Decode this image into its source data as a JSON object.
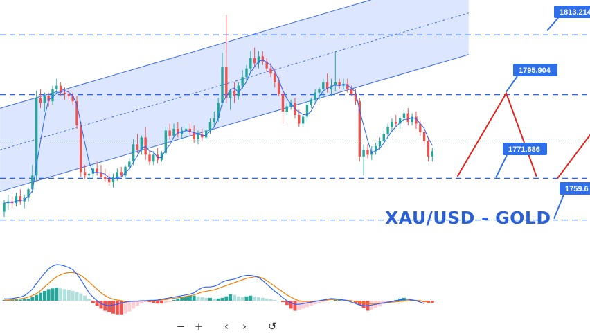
{
  "title": "XAU/USD - GOLD",
  "colors": {
    "bull": "#26a69a",
    "bear": "#ef5350",
    "channel_fill": "#d6e2ff",
    "channel_line": "#3d6be8",
    "level_line": "#2962ff",
    "label_bg": "#2f6fe8",
    "forecast": "#e8201a",
    "fast_line": "#2962ff",
    "slow_line": "#f57c00",
    "title": "#2a5fd6"
  },
  "levels": [
    {
      "value": 1813.214,
      "label": "1813.214"
    },
    {
      "value": 1795.904,
      "label": "1795.904"
    },
    {
      "value": 1771.686,
      "label": "1771.686"
    },
    {
      "value": 1759.6,
      "label": "1759.6"
    }
  ],
  "toolbar": {
    "buttons": [
      {
        "name": "zoom-out-button",
        "icon": "minus-icon",
        "glyph": "−"
      },
      {
        "name": "zoom-in-button",
        "icon": "plus-icon",
        "glyph": "+"
      },
      {
        "name": "scroll-left-button",
        "icon": "chevron-left-icon",
        "glyph": "‹"
      },
      {
        "name": "scroll-right-button",
        "icon": "chevron-right-icon",
        "glyph": "›"
      },
      {
        "name": "reset-button",
        "icon": "reset-icon",
        "glyph": "↺"
      }
    ]
  },
  "chart_data": {
    "type": "candlestick",
    "title": "XAU/USD - GOLD",
    "ylim": [
      1752.7,
      1823.3
    ],
    "grid": false,
    "channel": {
      "start": [
        0,
        1768.2
      ],
      "end": [
        115,
        1807.5
      ],
      "width": 24.1
    },
    "candles": [
      [
        1762.0,
        1765.5,
        1760.5,
        1764.5
      ],
      [
        1764.5,
        1767.0,
        1762.5,
        1765.0
      ],
      [
        1765.0,
        1766.5,
        1763.0,
        1764.5
      ],
      [
        1764.5,
        1767.5,
        1763.5,
        1766.5
      ],
      [
        1766.5,
        1768.5,
        1764.0,
        1765.0
      ],
      [
        1765.0,
        1767.0,
        1763.0,
        1766.0
      ],
      [
        1766.0,
        1769.0,
        1765.0,
        1768.5
      ],
      [
        1768.5,
        1775.5,
        1767.5,
        1772.5
      ],
      [
        1772.5,
        1797.0,
        1771.0,
        1795.0
      ],
      [
        1795.0,
        1797.5,
        1792.0,
        1793.5
      ],
      [
        1793.5,
        1796.5,
        1791.0,
        1795.5
      ],
      [
        1795.5,
        1796.5,
        1792.5,
        1794.0
      ],
      [
        1794.0,
        1798.5,
        1793.0,
        1797.5
      ],
      [
        1797.5,
        1800.5,
        1796.0,
        1798.5
      ],
      [
        1798.5,
        1799.5,
        1795.5,
        1796.5
      ],
      [
        1796.5,
        1798.0,
        1794.5,
        1796.0
      ],
      [
        1796.0,
        1797.5,
        1794.5,
        1795.5
      ],
      [
        1795.5,
        1796.5,
        1793.0,
        1794.0
      ],
      [
        1794.0,
        1795.5,
        1786.0,
        1787.0
      ],
      [
        1787.0,
        1788.0,
        1772.0,
        1773.5
      ],
      [
        1773.5,
        1775.5,
        1771.5,
        1772.5
      ],
      [
        1772.5,
        1774.5,
        1770.5,
        1773.0
      ],
      [
        1773.0,
        1776.0,
        1771.5,
        1774.5
      ],
      [
        1774.5,
        1776.5,
        1772.5,
        1773.5
      ],
      [
        1773.5,
        1775.5,
        1771.5,
        1772.0
      ],
      [
        1772.0,
        1774.5,
        1770.5,
        1771.5
      ],
      [
        1771.5,
        1773.0,
        1769.5,
        1770.5
      ],
      [
        1770.5,
        1773.0,
        1769.0,
        1772.0
      ],
      [
        1772.0,
        1774.5,
        1771.0,
        1773.5
      ],
      [
        1773.5,
        1775.0,
        1772.0,
        1772.5
      ],
      [
        1772.5,
        1775.5,
        1771.5,
        1775.0
      ],
      [
        1775.0,
        1777.5,
        1774.0,
        1776.5
      ],
      [
        1776.5,
        1783.0,
        1775.5,
        1781.5
      ],
      [
        1781.5,
        1784.5,
        1779.0,
        1780.0
      ],
      [
        1780.0,
        1784.0,
        1778.5,
        1783.5
      ],
      [
        1783.5,
        1786.5,
        1777.0,
        1778.5
      ],
      [
        1778.5,
        1780.0,
        1775.5,
        1776.5
      ],
      [
        1776.5,
        1779.5,
        1775.5,
        1778.5
      ],
      [
        1778.5,
        1780.5,
        1776.0,
        1777.0
      ],
      [
        1777.0,
        1779.5,
        1776.5,
        1779.0
      ],
      [
        1779.0,
        1786.5,
        1778.5,
        1785.5
      ],
      [
        1785.5,
        1787.5,
        1783.0,
        1784.0
      ],
      [
        1784.0,
        1787.5,
        1783.5,
        1786.0
      ],
      [
        1786.0,
        1788.0,
        1783.5,
        1784.5
      ],
      [
        1784.5,
        1786.5,
        1783.0,
        1785.5
      ],
      [
        1785.5,
        1787.0,
        1784.0,
        1786.0
      ],
      [
        1786.0,
        1787.5,
        1784.0,
        1785.0
      ],
      [
        1785.0,
        1787.0,
        1782.0,
        1783.0
      ],
      [
        1783.0,
        1785.5,
        1781.5,
        1784.5
      ],
      [
        1784.5,
        1786.0,
        1782.5,
        1783.5
      ],
      [
        1783.5,
        1786.0,
        1783.0,
        1785.5
      ],
      [
        1785.5,
        1789.0,
        1784.5,
        1788.0
      ],
      [
        1788.0,
        1791.0,
        1786.5,
        1789.0
      ],
      [
        1789.0,
        1795.0,
        1788.0,
        1793.5
      ],
      [
        1793.5,
        1808.0,
        1792.5,
        1804.0
      ],
      [
        1804.0,
        1819.0,
        1793.5,
        1795.0
      ],
      [
        1795.0,
        1797.5,
        1791.5,
        1797.0
      ],
      [
        1797.0,
        1799.5,
        1793.5,
        1795.5
      ],
      [
        1795.5,
        1799.5,
        1794.5,
        1798.5
      ],
      [
        1798.5,
        1803.0,
        1797.5,
        1801.0
      ],
      [
        1801.0,
        1804.5,
        1799.5,
        1803.5
      ],
      [
        1803.5,
        1808.5,
        1802.0,
        1806.5
      ],
      [
        1806.5,
        1809.5,
        1804.0,
        1805.0
      ],
      [
        1805.0,
        1808.5,
        1803.5,
        1807.0
      ],
      [
        1807.0,
        1808.5,
        1804.5,
        1805.5
      ],
      [
        1805.5,
        1806.5,
        1802.5,
        1803.5
      ],
      [
        1803.5,
        1805.0,
        1801.0,
        1802.0
      ],
      [
        1802.0,
        1803.5,
        1798.0,
        1799.5
      ],
      [
        1799.5,
        1801.0,
        1795.5,
        1796.0
      ],
      [
        1796.0,
        1798.0,
        1787.5,
        1791.0
      ],
      [
        1791.0,
        1793.5,
        1790.0,
        1792.5
      ],
      [
        1792.5,
        1794.5,
        1791.5,
        1793.5
      ],
      [
        1793.5,
        1795.0,
        1789.0,
        1790.0
      ],
      [
        1790.0,
        1791.5,
        1786.5,
        1787.5
      ],
      [
        1787.5,
        1790.0,
        1786.5,
        1789.5
      ],
      [
        1789.5,
        1794.0,
        1788.0,
        1793.0
      ],
      [
        1793.0,
        1795.0,
        1792.0,
        1794.5
      ],
      [
        1794.5,
        1797.5,
        1793.5,
        1796.5
      ],
      [
        1796.5,
        1798.0,
        1794.5,
        1797.5
      ],
      [
        1797.5,
        1800.5,
        1795.0,
        1799.5
      ],
      [
        1799.5,
        1802.0,
        1796.5,
        1797.5
      ],
      [
        1797.5,
        1800.5,
        1795.5,
        1798.5
      ],
      [
        1798.5,
        1808.5,
        1797.0,
        1799.5
      ],
      [
        1799.5,
        1800.5,
        1797.5,
        1798.5
      ],
      [
        1798.5,
        1800.5,
        1797.5,
        1799.0
      ],
      [
        1799.0,
        1800.5,
        1796.5,
        1797.5
      ],
      [
        1797.5,
        1798.5,
        1795.5,
        1796.0
      ],
      [
        1796.0,
        1797.5,
        1793.0,
        1794.0
      ],
      [
        1794.0,
        1795.0,
        1776.5,
        1778.0
      ],
      [
        1778.0,
        1781.5,
        1772.5,
        1780.0
      ],
      [
        1780.0,
        1781.5,
        1777.5,
        1778.5
      ],
      [
        1778.5,
        1781.0,
        1777.0,
        1779.5
      ],
      [
        1779.5,
        1782.0,
        1778.5,
        1781.0
      ],
      [
        1781.0,
        1783.5,
        1780.0,
        1782.5
      ],
      [
        1782.5,
        1785.5,
        1781.5,
        1784.5
      ],
      [
        1784.5,
        1787.5,
        1783.5,
        1786.5
      ],
      [
        1786.5,
        1789.0,
        1785.0,
        1788.0
      ],
      [
        1788.0,
        1790.0,
        1786.5,
        1787.5
      ],
      [
        1787.5,
        1789.5,
        1786.0,
        1789.0
      ],
      [
        1789.0,
        1791.5,
        1788.0,
        1790.5
      ],
      [
        1790.5,
        1792.0,
        1787.0,
        1788.0
      ],
      [
        1788.0,
        1790.5,
        1787.0,
        1789.5
      ],
      [
        1789.5,
        1791.0,
        1786.0,
        1787.5
      ],
      [
        1787.5,
        1788.5,
        1784.0,
        1785.0
      ],
      [
        1785.0,
        1786.5,
        1781.5,
        1782.5
      ],
      [
        1782.5,
        1783.5,
        1776.5,
        1778.0
      ],
      [
        1778.0,
        1780.5,
        1776.5,
        1779.5
      ]
    ],
    "forecast_paths": [
      [
        [
          112.2,
          1772.2
        ],
        [
          124.3,
          1796.3
        ],
        [
          131.8,
          1772.2
        ]
      ],
      [
        [
          137.0,
          1771.7
        ],
        [
          152.2,
          1795.3
        ],
        [
          163.5,
          1780.5
        ]
      ]
    ],
    "indicator": {
      "type": "macd",
      "histogram": [
        0.02,
        0.02,
        0.02,
        0.03,
        0.03,
        0.04,
        0.06,
        0.1,
        0.16,
        0.22,
        0.27,
        0.32,
        0.34,
        0.36,
        0.34,
        0.32,
        0.3,
        0.27,
        0.24,
        0.2,
        0.14,
        0.05,
        -0.06,
        -0.14,
        -0.22,
        -0.28,
        -0.32,
        -0.36,
        -0.38,
        -0.38,
        -0.36,
        -0.3,
        -0.22,
        -0.14,
        -0.08,
        -0.04,
        -0.04,
        -0.06,
        -0.08,
        -0.08,
        -0.06,
        -0.04,
        0.02,
        0.06,
        0.1,
        0.12,
        0.14,
        0.14,
        0.12,
        0.1,
        0.08,
        0.08,
        0.06,
        0.06,
        0.08,
        0.12,
        0.18,
        0.16,
        0.12,
        0.1,
        0.12,
        0.14,
        0.12,
        0.1,
        0.08,
        0.06,
        0.04,
        0.02,
        0.0,
        -0.04,
        -0.12,
        -0.22,
        -0.28,
        -0.26,
        -0.22,
        -0.18,
        -0.14,
        -0.1,
        -0.06,
        -0.04,
        -0.02,
        0.0,
        0.02,
        0.04,
        0.03,
        0.02,
        0.0,
        -0.06,
        -0.12,
        -0.2,
        -0.28,
        -0.26,
        -0.2,
        -0.16,
        -0.1,
        -0.06,
        -0.02,
        0.02,
        0.06,
        0.08,
        0.06,
        0.04,
        0.02,
        -0.02,
        -0.04,
        -0.06,
        -0.06
      ],
      "fast": [
        0.05,
        0.05,
        0.06,
        0.08,
        0.1,
        0.14,
        0.22,
        0.32,
        0.48,
        0.62,
        0.76,
        0.88,
        0.96,
        1.0,
        0.99,
        0.96,
        0.92,
        0.86,
        0.74,
        0.58,
        0.4,
        0.22,
        0.1,
        0.0,
        -0.08,
        -0.12,
        -0.14,
        -0.12,
        -0.1,
        -0.06,
        -0.04,
        -0.02,
        -0.01,
        -0.01,
        0.0,
        0.0,
        0.01,
        0.01,
        0.02,
        0.04,
        0.06,
        0.08,
        0.1,
        0.12,
        0.14,
        0.16,
        0.18,
        0.22,
        0.3,
        0.36,
        0.38,
        0.38,
        0.4,
        0.44,
        0.52,
        0.56,
        0.58,
        0.6,
        0.64,
        0.68,
        0.7,
        0.7,
        0.68,
        0.64,
        0.56,
        0.46,
        0.36,
        0.26,
        0.18,
        0.08,
        0.0,
        -0.06,
        -0.1,
        -0.1,
        -0.08,
        -0.06,
        -0.04,
        -0.02,
        0.0,
        0.02,
        0.04,
        0.06,
        0.05,
        0.04,
        0.02,
        0.0,
        -0.04,
        -0.08,
        -0.12,
        -0.14,
        -0.14,
        -0.12,
        -0.1,
        -0.08,
        -0.06,
        -0.04,
        -0.02,
        0.0,
        0.02,
        0.04,
        0.04,
        0.02,
        0.0,
        -0.04,
        -0.08
      ],
      "slow": [
        0.02,
        0.02,
        0.03,
        0.04,
        0.05,
        0.07,
        0.1,
        0.14,
        0.2,
        0.28,
        0.38,
        0.48,
        0.58,
        0.66,
        0.72,
        0.76,
        0.78,
        0.78,
        0.76,
        0.7,
        0.62,
        0.52,
        0.42,
        0.32,
        0.22,
        0.14,
        0.08,
        0.04,
        0.02,
        0.0,
        -0.02,
        -0.02,
        -0.02,
        -0.02,
        -0.01,
        -0.01,
        0.0,
        0.0,
        0.01,
        0.02,
        0.03,
        0.05,
        0.07,
        0.08,
        0.1,
        0.12,
        0.14,
        0.16,
        0.2,
        0.24,
        0.26,
        0.28,
        0.3,
        0.34,
        0.38,
        0.42,
        0.46,
        0.5,
        0.54,
        0.58,
        0.62,
        0.64,
        0.66,
        0.66,
        0.62,
        0.56,
        0.48,
        0.4,
        0.32,
        0.24,
        0.16,
        0.1,
        0.04,
        0.0,
        -0.02,
        -0.02,
        -0.02,
        -0.01,
        0.0,
        0.01,
        0.02,
        0.03,
        0.03,
        0.03,
        0.02,
        0.01,
        0.0,
        -0.02,
        -0.04,
        -0.06,
        -0.08,
        -0.08,
        -0.08,
        -0.07,
        -0.06,
        -0.05,
        -0.04,
        -0.03,
        -0.02,
        -0.01,
        0.0,
        0.01,
        0.01,
        0.0,
        -0.02,
        -0.04
      ]
    }
  }
}
